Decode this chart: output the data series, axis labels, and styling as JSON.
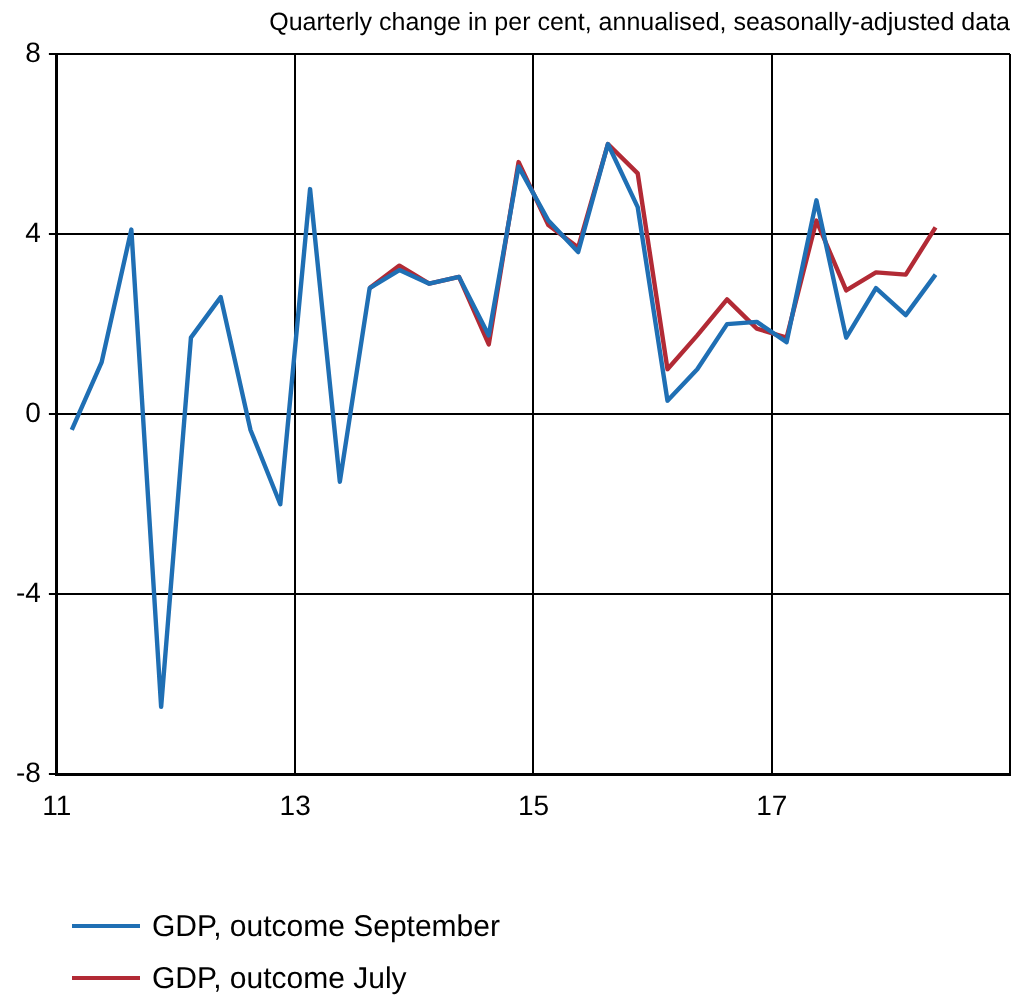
{
  "chart_data": {
    "type": "line",
    "subtitle": "Quarterly change in per cent, annualised, seasonally-adjusted data",
    "x": [
      11.125,
      11.375,
      11.625,
      11.875,
      12.125,
      12.375,
      12.625,
      12.875,
      13.125,
      13.375,
      13.625,
      13.875,
      14.125,
      14.375,
      14.625,
      14.875,
      15.125,
      15.375,
      15.625,
      15.875,
      16.125,
      16.375,
      16.625,
      16.875,
      17.125,
      17.375,
      17.625,
      17.875,
      18.125,
      18.375
    ],
    "series": [
      {
        "name": "GDP, outcome September",
        "color": "#1f6fb4",
        "values": [
          -0.35,
          1.15,
          4.1,
          -6.5,
          1.7,
          2.6,
          -0.35,
          -2.0,
          5.0,
          -1.5,
          2.8,
          3.2,
          2.9,
          3.05,
          1.75,
          5.5,
          4.3,
          3.6,
          6.0,
          4.6,
          0.3,
          1.0,
          2.0,
          2.05,
          1.6,
          4.75,
          1.7,
          2.8,
          2.2,
          3.1
        ]
      },
      {
        "name": "GDP, outcome July",
        "color": "#b22a35",
        "values": [
          null,
          null,
          null,
          null,
          null,
          null,
          null,
          null,
          null,
          null,
          2.8,
          3.3,
          2.9,
          3.05,
          1.55,
          5.6,
          4.2,
          3.7,
          6.0,
          5.35,
          1.0,
          1.75,
          2.55,
          1.9,
          1.7,
          4.3,
          2.75,
          3.15,
          3.1,
          4.15
        ]
      }
    ],
    "xlim": [
      11,
      19
    ],
    "xticks": [
      11,
      13,
      15,
      17,
      {
        "value": 19,
        "label": null
      }
    ],
    "ylim": [
      -8,
      8
    ],
    "yticks": [
      -8,
      -4,
      0,
      4,
      8
    ],
    "grid": true,
    "legend": "bottom left",
    "marker": "none",
    "line_style": "solid"
  }
}
